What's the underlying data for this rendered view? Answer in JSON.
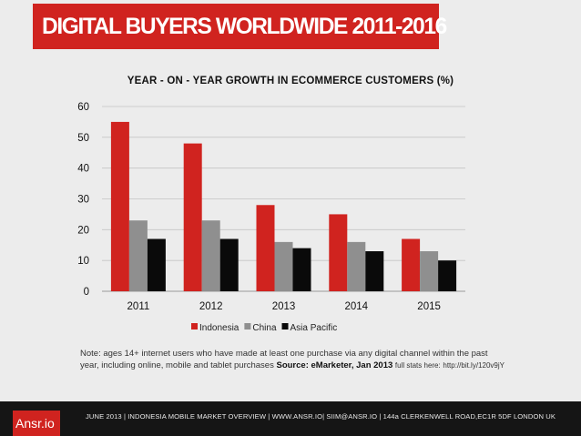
{
  "header": {
    "title": "DIGITAL BUYERS WORLDWIDE 2011-2016"
  },
  "chart_data": {
    "type": "bar",
    "title": "YEAR - ON - YEAR GROWTH IN ECOMMERCE CUSTOMERS (%)",
    "categories": [
      "2011",
      "2012",
      "2013",
      "2014",
      "2015"
    ],
    "series": [
      {
        "name": "Indonesia",
        "color": "#d0231f",
        "values": [
          55,
          48,
          28,
          25,
          17
        ]
      },
      {
        "name": "China",
        "color": "#8f8f8f",
        "values": [
          23,
          23,
          16,
          16,
          13
        ]
      },
      {
        "name": "Asia Pacific",
        "color": "#0a0a0a",
        "values": [
          17,
          17,
          14,
          13,
          10
        ]
      }
    ],
    "yticks": [
      0,
      10,
      20,
      30,
      40,
      50,
      60
    ],
    "ylim": [
      0,
      60
    ],
    "grid": true,
    "legend": "bottom-center"
  },
  "note": {
    "text": "Note: ages 14+ internet users who have made at least one purchase via any digital channel within the past year, including online, mobile and tablet purchases",
    "source": "Source: eMarketer, Jan 2013",
    "stats": "full stats here:",
    "link": "http://bit.ly/120v9jY"
  },
  "footer": {
    "logo": "Ansr.io",
    "text": "JUNE 2013 | INDONESIA MOBILE MARKET OVERVIEW | WWW.ANSR.IO| SIIM@ANSR.IO | 144a CLERKENWELL ROAD,EC1R 5DF LONDON UK"
  }
}
